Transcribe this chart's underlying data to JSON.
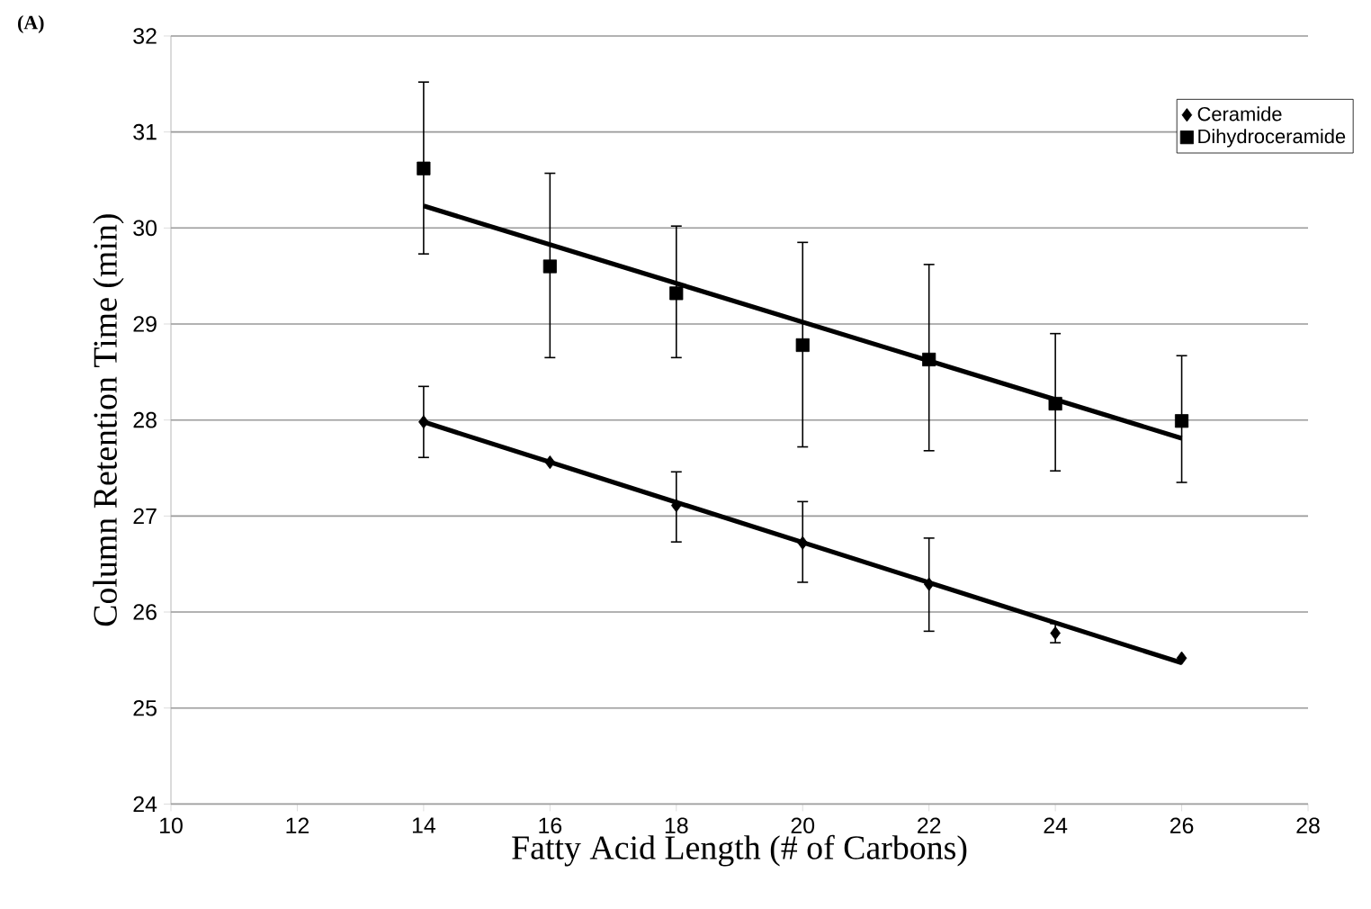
{
  "chart_data": {
    "type": "scatter",
    "xlabel": "Fatty Acid Length (# of Carbons)",
    "ylabel": "Column Retention Time (min)",
    "annotations": [
      "(A)"
    ],
    "xlim": [
      10,
      28
    ],
    "xticks": [
      10,
      12,
      14,
      16,
      18,
      20,
      22,
      24,
      26,
      28
    ],
    "ylim": [
      24,
      32
    ],
    "yticks": [
      24,
      25,
      26,
      27,
      28,
      29,
      30,
      31,
      32
    ],
    "grid": "y",
    "legend": "top right",
    "series": [
      {
        "name": "Ceramide",
        "color": "#000000",
        "marker": "diamond",
        "x": [
          14,
          16,
          18,
          20,
          22,
          24,
          26
        ],
        "values": [
          27.98,
          27.56,
          27.11,
          26.72,
          26.29,
          25.78,
          25.52
        ],
        "errors": [
          [
            27.61,
            28.35
          ],
          null,
          [
            26.73,
            27.46
          ],
          [
            26.31,
            27.15
          ],
          [
            25.8,
            26.77
          ],
          [
            25.68,
            25.88
          ],
          null
        ]
      },
      {
        "name": "Dihydroceramide",
        "color": "#000000",
        "marker": "square",
        "x": [
          14,
          16,
          18,
          20,
          22,
          24,
          26
        ],
        "values": [
          30.62,
          29.6,
          29.32,
          28.78,
          28.63,
          28.17,
          27.99
        ],
        "errors": [
          [
            29.73,
            31.52
          ],
          [
            28.65,
            30.57
          ],
          [
            28.65,
            30.02
          ],
          [
            27.72,
            29.85
          ],
          [
            27.68,
            29.62
          ],
          [
            27.47,
            28.9
          ],
          [
            27.35,
            28.67
          ]
        ]
      },
      {
        "type": "line",
        "color": "#000000",
        "marker": "none",
        "x": [
          14,
          26
        ],
        "values": [
          27.98,
          25.47
        ]
      },
      {
        "type": "line",
        "color": "#000000",
        "marker": "none",
        "x": [
          14,
          26
        ],
        "values": [
          30.23,
          27.81
        ]
      }
    ]
  }
}
